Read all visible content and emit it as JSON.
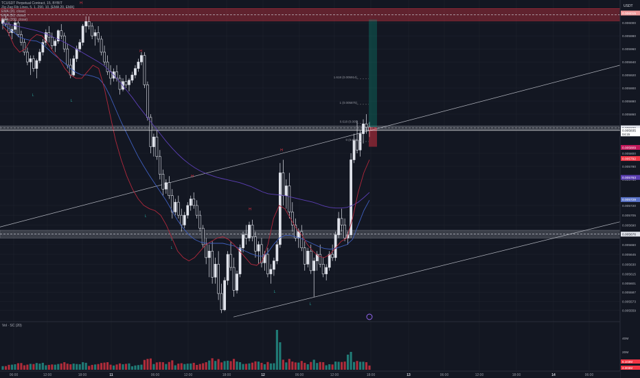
{
  "header": {
    "symbol": "TCUSDT Perpetual Contract, 15, BYBIT",
    "indicators": [
      "Zig Zag Fib Lines, 5, 1, 290, 10, [EMA 20, EMA]",
      "EMA (20, close)",
      "EMA (50, close)",
      "EMA (200, close)"
    ],
    "currency": "USDT"
  },
  "chart_data": {
    "type": "candlestick",
    "instrument": "TCUSDT Perpetual Contract",
    "timeframe": "15",
    "exchange": "BYBIT",
    "price_axis_ticks": [
      0.006,
      0.00598,
      0.00596,
      0.00594,
      0.00592,
      0.0059,
      0.00588,
      0.00586,
      0.0058,
      0.00578,
      0.00576,
      0.00572,
      0.005705,
      0.00569,
      0.005675,
      0.00566,
      0.005645,
      0.00563,
      0.005615,
      0.005601,
      0.005587,
      0.005573,
      0.005559
    ],
    "time_axis_ticks": [
      "06:00",
      "12:00",
      "18:00",
      "11",
      "06:00",
      "12:00",
      "18:00",
      "12",
      "06:00",
      "12:00",
      "18:00",
      "13",
      "06:00",
      "12:00",
      "18:00",
      "14",
      "06:00"
    ],
    "price_labels": [
      {
        "text": "0.006015",
        "value": 0.006015,
        "color": "#ef9a9a"
      },
      {
        "text": "0.005839",
        "value": 0.005839,
        "color": "#e0e3eb"
      },
      {
        "text": "0.005835",
        "value": 0.005835,
        "color": "#ffffff",
        "sub": "04:15"
      },
      {
        "text": "0.005809",
        "value": 0.005809,
        "color": "#c2185b"
      },
      {
        "text": "0.005792",
        "value": 0.005792,
        "color": "#f23645"
      },
      {
        "text": "0.005763",
        "value": 0.005763,
        "color": "#5c3fb5"
      },
      {
        "text": "0.005729",
        "value": 0.005729,
        "color": "#5b74c9"
      },
      {
        "text": "0.005676",
        "value": 0.005676,
        "color": "#e0e3eb"
      }
    ],
    "zones": [
      {
        "name": "resistance",
        "from": 0.006003,
        "to": 0.006022,
        "color": "#f23645"
      },
      {
        "name": "mid",
        "from": 0.005836,
        "to": 0.005842,
        "color": "#9598a1"
      },
      {
        "name": "support",
        "from": 0.00567,
        "to": 0.005682,
        "color": "#9598a1"
      }
    ],
    "fib_labels": [
      "1.618 (0.005914)",
      "1 (0.005875)",
      "0.618 (0.005",
      "0 (0.005"
    ],
    "swing_labels": [
      "H",
      "L",
      "L",
      "H",
      "L",
      "H",
      "L",
      "H",
      "L",
      "H",
      "L",
      "L"
    ],
    "volume_label": "Vol · SC (20)",
    "volume_axis_ticks": [
      "40M",
      "20M"
    ],
    "volume_values_labels": [
      "6.103M",
      "2.303M"
    ],
    "candles": [
      [
        0.005999,
        0.006008,
        0.00599,
        0.006005
      ],
      [
        0.006005,
        0.00601,
        0.005995,
        0.005998
      ],
      [
        0.005998,
        0.006002,
        0.00598,
        0.005985
      ],
      [
        0.005985,
        0.005995,
        0.005975,
        0.00599
      ],
      [
        0.00599,
        0.006005,
        0.005985,
        0.006
      ],
      [
        0.006,
        0.006003,
        0.005978,
        0.005982
      ],
      [
        0.005982,
        0.005988,
        0.005965,
        0.00597
      ],
      [
        0.00597,
        0.005975,
        0.00595,
        0.005955
      ],
      [
        0.005955,
        0.005962,
        0.005935,
        0.00594
      ],
      [
        0.00594,
        0.00595,
        0.00592,
        0.005945
      ],
      [
        0.005945,
        0.00595,
        0.005925,
        0.00593
      ],
      [
        0.00593,
        0.005945,
        0.005915,
        0.005942
      ],
      [
        0.005942,
        0.00596,
        0.005938,
        0.005955
      ],
      [
        0.005955,
        0.005975,
        0.00595,
        0.00597
      ],
      [
        0.00597,
        0.00599,
        0.005965,
        0.005985
      ],
      [
        0.005985,
        0.005995,
        0.00597,
        0.005978
      ],
      [
        0.005978,
        0.005985,
        0.00596,
        0.005965
      ],
      [
        0.005965,
        0.005975,
        0.005955,
        0.005972
      ],
      [
        0.005972,
        0.00599,
        0.005968,
        0.005988
      ],
      [
        0.005988,
        0.005998,
        0.005975,
        0.00598
      ],
      [
        0.00598,
        0.005985,
        0.005955,
        0.00596
      ],
      [
        0.00596,
        0.005968,
        0.00593,
        0.005935
      ],
      [
        0.005935,
        0.005945,
        0.005915,
        0.00592
      ],
      [
        0.00592,
        0.00595,
        0.005918,
        0.005945
      ],
      [
        0.005945,
        0.005965,
        0.00594,
        0.00596
      ],
      [
        0.00596,
        0.005975,
        0.005955,
        0.00597
      ],
      [
        0.00597,
        0.005998,
        0.005965,
        0.005995
      ],
      [
        0.005995,
        0.00601,
        0.005985,
        0.006002
      ],
      [
        0.006002,
        0.00601,
        0.00599,
        0.005995
      ],
      [
        0.005995,
        0.006,
        0.005975,
        0.00598
      ],
      [
        0.00598,
        0.00599,
        0.005965,
        0.005985
      ],
      [
        0.005985,
        0.005995,
        0.00597,
        0.005975
      ],
      [
        0.005975,
        0.00598,
        0.00595,
        0.005955
      ],
      [
        0.005955,
        0.005965,
        0.005935,
        0.00594
      ],
      [
        0.00594,
        0.00595,
        0.00592,
        0.005925
      ],
      [
        0.005925,
        0.005935,
        0.005905,
        0.005915
      ],
      [
        0.005915,
        0.00593,
        0.00591,
        0.005925
      ],
      [
        0.005925,
        0.005935,
        0.00591,
        0.005915
      ],
      [
        0.005915,
        0.00592,
        0.00589,
        0.005898
      ],
      [
        0.005898,
        0.005915,
        0.005895,
        0.00591
      ],
      [
        0.00591,
        0.00592,
        0.0059,
        0.005905
      ],
      [
        0.005905,
        0.005915,
        0.005895,
        0.005912
      ],
      [
        0.005912,
        0.005925,
        0.005908,
        0.00592
      ],
      [
        0.00592,
        0.005935,
        0.005915,
        0.00593
      ],
      [
        0.00593,
        0.005945,
        0.005925,
        0.00594
      ],
      [
        0.00594,
        0.005955,
        0.005935,
        0.00595
      ],
      [
        0.00595,
        0.005955,
        0.0059,
        0.005905
      ],
      [
        0.005905,
        0.00591,
        0.00585,
        0.005855
      ],
      [
        0.005855,
        0.00586,
        0.0058,
        0.00581
      ],
      [
        0.00581,
        0.00583,
        0.005795,
        0.005825
      ],
      [
        0.005825,
        0.005835,
        0.00579,
        0.005795
      ],
      [
        0.005795,
        0.005805,
        0.00576,
        0.005768
      ],
      [
        0.005768,
        0.005775,
        0.005735,
        0.005745
      ],
      [
        0.005745,
        0.00576,
        0.005738,
        0.005755
      ],
      [
        0.005755,
        0.005765,
        0.00573,
        0.005735
      ],
      [
        0.005735,
        0.005745,
        0.0057,
        0.00571
      ],
      [
        0.00571,
        0.00573,
        0.005705,
        0.005725
      ],
      [
        0.005725,
        0.005735,
        0.0057,
        0.005705
      ],
      [
        0.005705,
        0.005715,
        0.00568,
        0.00569
      ],
      [
        0.00569,
        0.00571,
        0.005685,
        0.005705
      ],
      [
        0.005705,
        0.005725,
        0.0057,
        0.00572
      ],
      [
        0.00572,
        0.005735,
        0.005712,
        0.00573
      ],
      [
        0.00573,
        0.00574,
        0.005715,
        0.00572
      ],
      [
        0.00572,
        0.005728,
        0.0057,
        0.005705
      ],
      [
        0.005705,
        0.005712,
        0.00568,
        0.005685
      ],
      [
        0.005685,
        0.00569,
        0.005655,
        0.00566
      ],
      [
        0.00566,
        0.00567,
        0.00563,
        0.00564
      ],
      [
        0.00564,
        0.00566,
        0.00561,
        0.00565
      ],
      [
        0.00565,
        0.005665,
        0.0056,
        0.00561
      ],
      [
        0.00561,
        0.00564,
        0.0056,
        0.00563
      ],
      [
        0.00563,
        0.00565,
        0.005575,
        0.005585
      ],
      [
        0.005585,
        0.0056,
        0.005555,
        0.00556
      ],
      [
        0.00556,
        0.00561,
        0.005558,
        0.005605
      ],
      [
        0.005605,
        0.00565,
        0.005598,
        0.005645
      ],
      [
        0.005645,
        0.005665,
        0.00562,
        0.005625
      ],
      [
        0.005625,
        0.00564,
        0.00558,
        0.00559
      ],
      [
        0.00559,
        0.00562,
        0.005585,
        0.005615
      ],
      [
        0.005615,
        0.00566,
        0.00561,
        0.005655
      ],
      [
        0.005655,
        0.00568,
        0.005648,
        0.005675
      ],
      [
        0.005675,
        0.00569,
        0.00566,
        0.00567
      ],
      [
        0.00567,
        0.005695,
        0.005665,
        0.00569
      ],
      [
        0.00569,
        0.005698,
        0.005665,
        0.005672
      ],
      [
        0.005672,
        0.00568,
        0.00564,
        0.00565
      ],
      [
        0.00565,
        0.005665,
        0.00563,
        0.00566
      ],
      [
        0.00566,
        0.00567,
        0.005625,
        0.005632
      ],
      [
        0.005632,
        0.00565,
        0.00562,
        0.005645
      ],
      [
        0.005645,
        0.005655,
        0.00561,
        0.005615
      ],
      [
        0.005615,
        0.00563,
        0.0056,
        0.005622
      ],
      [
        0.005622,
        0.00564,
        0.005612,
        0.005635
      ],
      [
        0.005635,
        0.005665,
        0.00563,
        0.00566
      ],
      [
        0.00566,
        0.005785,
        0.005655,
        0.00577
      ],
      [
        0.00577,
        0.00579,
        0.00572,
        0.005735
      ],
      [
        0.005735,
        0.00576,
        0.005715,
        0.00575
      ],
      [
        0.00575,
        0.00577,
        0.0057,
        0.00571
      ],
      [
        0.00571,
        0.005725,
        0.00568,
        0.00569
      ],
      [
        0.00569,
        0.0057,
        0.005665,
        0.00567
      ],
      [
        0.00567,
        0.005685,
        0.005655,
        0.00568
      ],
      [
        0.00568,
        0.00569,
        0.00565,
        0.005655
      ],
      [
        0.005655,
        0.005665,
        0.00562,
        0.00563
      ],
      [
        0.00563,
        0.005655,
        0.005625,
        0.00565
      ],
      [
        0.00565,
        0.00566,
        0.005615,
        0.00562
      ],
      [
        0.00562,
        0.00564,
        0.00558,
        0.005635
      ],
      [
        0.005635,
        0.00565,
        0.00562,
        0.005645
      ],
      [
        0.005645,
        0.00566,
        0.005625,
        0.00563
      ],
      [
        0.00563,
        0.00564,
        0.00561,
        0.005615
      ],
      [
        0.005615,
        0.00563,
        0.005605,
        0.005625
      ],
      [
        0.005625,
        0.00565,
        0.00562,
        0.005645
      ],
      [
        0.005645,
        0.00566,
        0.005635,
        0.00564
      ],
      [
        0.00564,
        0.00568,
        0.005635,
        0.005675
      ],
      [
        0.005675,
        0.00571,
        0.00567,
        0.0057
      ],
      [
        0.0057,
        0.005715,
        0.00568,
        0.00569
      ],
      [
        0.00569,
        0.0057,
        0.005665,
        0.00567
      ],
      [
        0.00567,
        0.00568,
        0.00566,
        0.005675
      ],
      [
        0.005675,
        0.0058,
        0.00567,
        0.00579
      ],
      [
        0.00579,
        0.00583,
        0.005785,
        0.00582
      ],
      [
        0.00582,
        0.00585,
        0.0058,
        0.005805
      ],
      [
        0.005805,
        0.005835,
        0.005795,
        0.00583
      ],
      [
        0.00583,
        0.005852,
        0.005815,
        0.005845
      ],
      [
        0.005845,
        0.00586,
        0.00583,
        0.00584
      ],
      [
        0.00584,
        0.005848,
        0.005825,
        0.005835
      ]
    ],
    "ema20": [
      0.005995,
      0.005985,
      0.005965,
      0.005955,
      0.00596,
      0.005975,
      0.005982,
      0.00598,
      0.005968,
      0.005955,
      0.005945,
      0.00593,
      0.00592,
      0.005915,
      0.005915,
      0.005925,
      0.005935,
      0.00593,
      0.0059,
      0.00586,
      0.00582,
      0.00579,
      0.005765,
      0.005745,
      0.00573,
      0.00572,
      0.005715,
      0.005712,
      0.005705,
      0.00569,
      0.00567,
      0.00565,
      0.00564,
      0.005635,
      0.00564,
      0.00565,
      0.00566,
      0.005665,
      0.00567,
      0.005672,
      0.005668,
      0.00566,
      0.00565,
      0.00564,
      0.00563,
      0.005628,
      0.005635,
      0.00566,
      0.0057,
      0.00572,
      0.005715,
      0.0057,
      0.005685,
      0.005675,
      0.00566,
      0.00565,
      0.005642,
      0.00564,
      0.005645,
      0.005655,
      0.005665,
      0.00567,
      0.0057,
      0.00574,
      0.00577,
      0.00579
    ],
    "ema50": [
      0.005998,
      0.005992,
      0.005985,
      0.005978,
      0.005975,
      0.005973,
      0.005972,
      0.005968,
      0.00596,
      0.005952,
      0.005945,
      0.005938,
      0.00593,
      0.005924,
      0.00592,
      0.00592,
      0.005918,
      0.005915,
      0.005905,
      0.005888,
      0.005868,
      0.005848,
      0.00583,
      0.005812,
      0.005795,
      0.00578,
      0.005766,
      0.005753,
      0.00574,
      0.005727,
      0.005712,
      0.005697,
      0.005685,
      0.005675,
      0.005668,
      0.005664,
      0.005662,
      0.005662,
      0.005662,
      0.005662,
      0.00566,
      0.005658,
      0.005654,
      0.00565,
      0.005646,
      0.005643,
      0.005642,
      0.005648,
      0.00566,
      0.00567,
      0.005674,
      0.005674,
      0.005672,
      0.005669,
      0.005665,
      0.005661,
      0.005657,
      0.005654,
      0.005653,
      0.005654,
      0.005657,
      0.00566,
      0.005668,
      0.00569,
      0.005712,
      0.005728
    ],
    "ema200": [
      0.006,
      0.005998,
      0.005996,
      0.005994,
      0.005992,
      0.00599,
      0.005988,
      0.005985,
      0.005982,
      0.005978,
      0.005974,
      0.00597,
      0.005965,
      0.00596,
      0.005955,
      0.00595,
      0.005945,
      0.00594,
      0.005934,
      0.005926,
      0.005917,
      0.005907,
      0.005896,
      0.005885,
      0.005873,
      0.005862,
      0.005851,
      0.00584,
      0.005829,
      0.005818,
      0.005808,
      0.005799,
      0.005791,
      0.005784,
      0.005778,
      0.005773,
      0.005769,
      0.005766,
      0.005763,
      0.005761,
      0.005759,
      0.005757,
      0.005755,
      0.005752,
      0.005749,
      0.005745,
      0.005741,
      0.005738,
      0.005737,
      0.005736,
      0.005735,
      0.005733,
      0.005731,
      0.005729,
      0.005727,
      0.005725,
      0.005722,
      0.005719,
      0.005717,
      0.005716,
      0.005716,
      0.005717,
      0.00572,
      0.005725,
      0.005732,
      0.00574
    ]
  }
}
